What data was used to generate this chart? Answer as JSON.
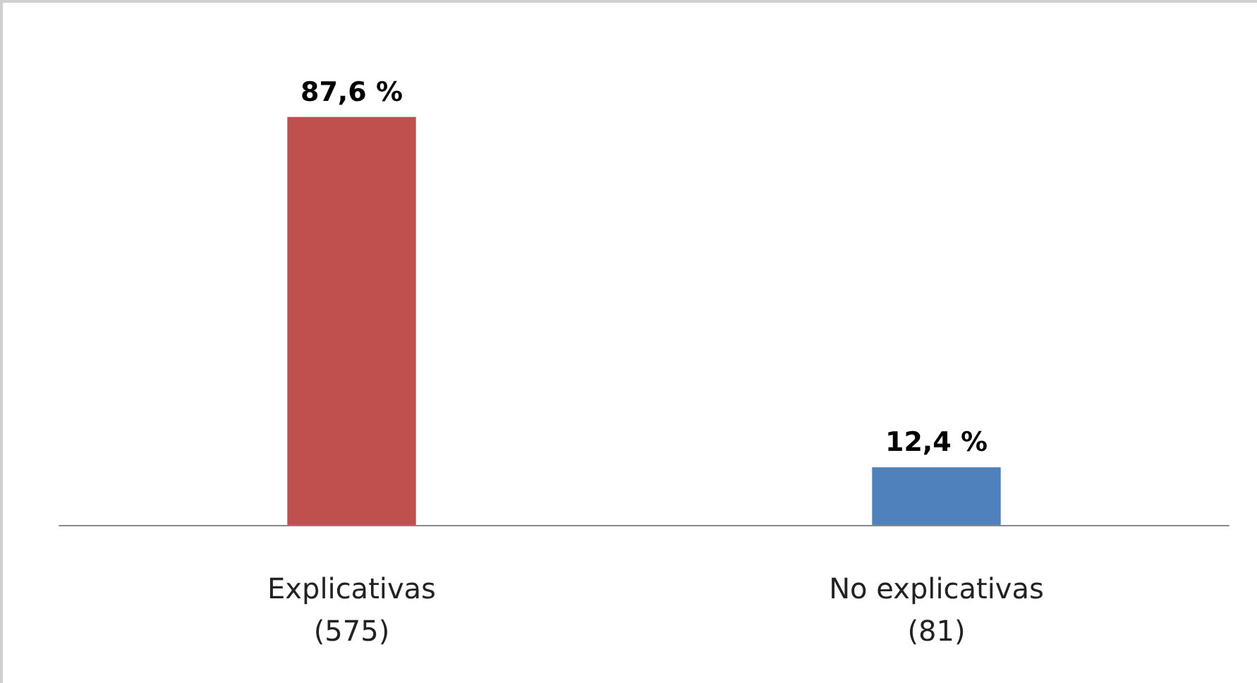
{
  "chart_data": {
    "type": "bar",
    "categories": [
      "Explicativas\n(575)",
      "No explicativas\n(81)"
    ],
    "values": [
      87.6,
      12.4
    ],
    "colors": [
      "#c0504d",
      "#4f81bd"
    ],
    "value_labels": [
      "87,6 %",
      "12,4 %"
    ],
    "tick_labels": "x"
  }
}
